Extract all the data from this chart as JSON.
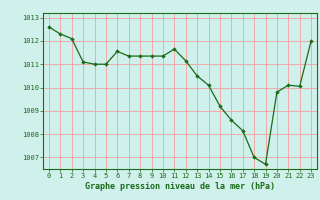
{
  "hours": [
    0,
    1,
    2,
    3,
    4,
    5,
    6,
    7,
    8,
    9,
    10,
    11,
    12,
    13,
    14,
    15,
    16,
    17,
    18,
    19,
    20,
    21,
    22,
    23
  ],
  "pressure": [
    1012.6,
    1012.3,
    1012.1,
    1011.1,
    1011.0,
    1011.0,
    1011.55,
    1011.35,
    1011.35,
    1011.35,
    1011.35,
    1011.65,
    1011.15,
    1010.5,
    1010.1,
    1009.2,
    1008.6,
    1008.15,
    1007.0,
    1006.7,
    1009.8,
    1010.1,
    1010.05,
    1012.0
  ],
  "line_color": "#1a6b1a",
  "marker": "D",
  "marker_size": 1.8,
  "bg_color": "#cff0eb",
  "grid_color": "#f5a0a0",
  "axis_color": "#1a6b1a",
  "tick_color": "#1a6b1a",
  "label_color": "#1a6b1a",
  "xlabel": "Graphe pression niveau de la mer (hPa)",
  "ylim": [
    1006.5,
    1013.2
  ],
  "yticks": [
    1007,
    1008,
    1009,
    1010,
    1011,
    1012,
    1013
  ],
  "xticks": [
    0,
    1,
    2,
    3,
    4,
    5,
    6,
    7,
    8,
    9,
    10,
    11,
    12,
    13,
    14,
    15,
    16,
    17,
    18,
    19,
    20,
    21,
    22,
    23
  ],
  "xlabel_fontsize": 6.0,
  "tick_fontsize": 5.0,
  "linewidth": 0.9
}
